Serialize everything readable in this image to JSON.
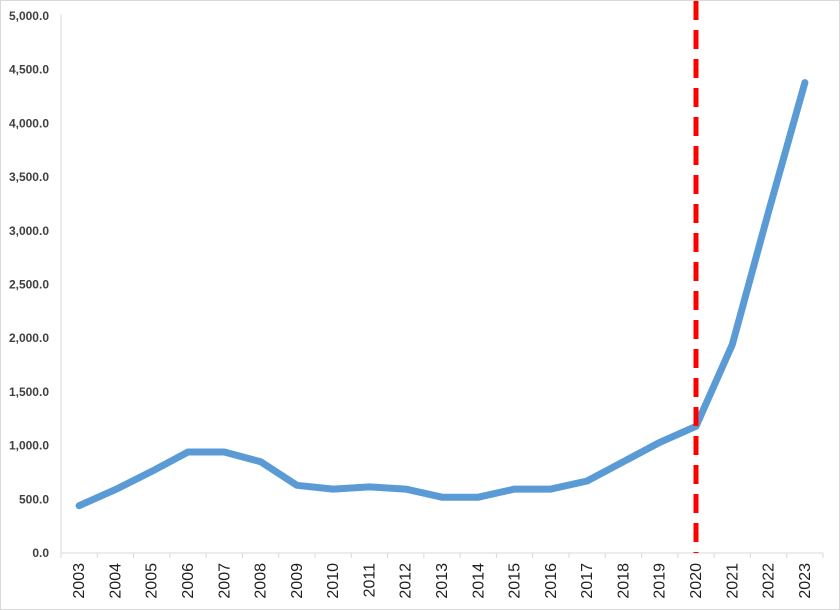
{
  "chart_data": {
    "type": "line",
    "title": "",
    "xlabel": "",
    "ylabel": "",
    "ylim": [
      0,
      5000
    ],
    "y_tick_values": [
      0,
      500,
      1000,
      1500,
      2000,
      2500,
      3000,
      3500,
      4000,
      4500,
      5000
    ],
    "y_tick_labels": [
      "0.0",
      "500.0",
      "1,000.0",
      "1,500.0",
      "2,000.0",
      "2,500.0",
      "3,000.0",
      "3,500.0",
      "4,000.0",
      "4,500.0",
      "5,000.0"
    ],
    "categories": [
      "2003",
      "2004",
      "2005",
      "2006",
      "2007",
      "2008",
      "2009",
      "2010",
      "2011",
      "2012",
      "2013",
      "2014",
      "2015",
      "2016",
      "2017",
      "2018",
      "2019",
      "2020",
      "2021",
      "2022",
      "2023"
    ],
    "series": [
      {
        "color": "#5b9bd5",
        "values": [
          440,
          590,
          760,
          940,
          940,
          850,
          630,
          595,
          615,
          595,
          520,
          520,
          595,
          595,
          670,
          850,
          1030,
          1180,
          1940,
          3180,
          4380
        ]
      }
    ],
    "marker_line": {
      "category": "2020",
      "color": "#ff0000",
      "style": "dashed"
    },
    "grid": false,
    "legend": "none"
  }
}
